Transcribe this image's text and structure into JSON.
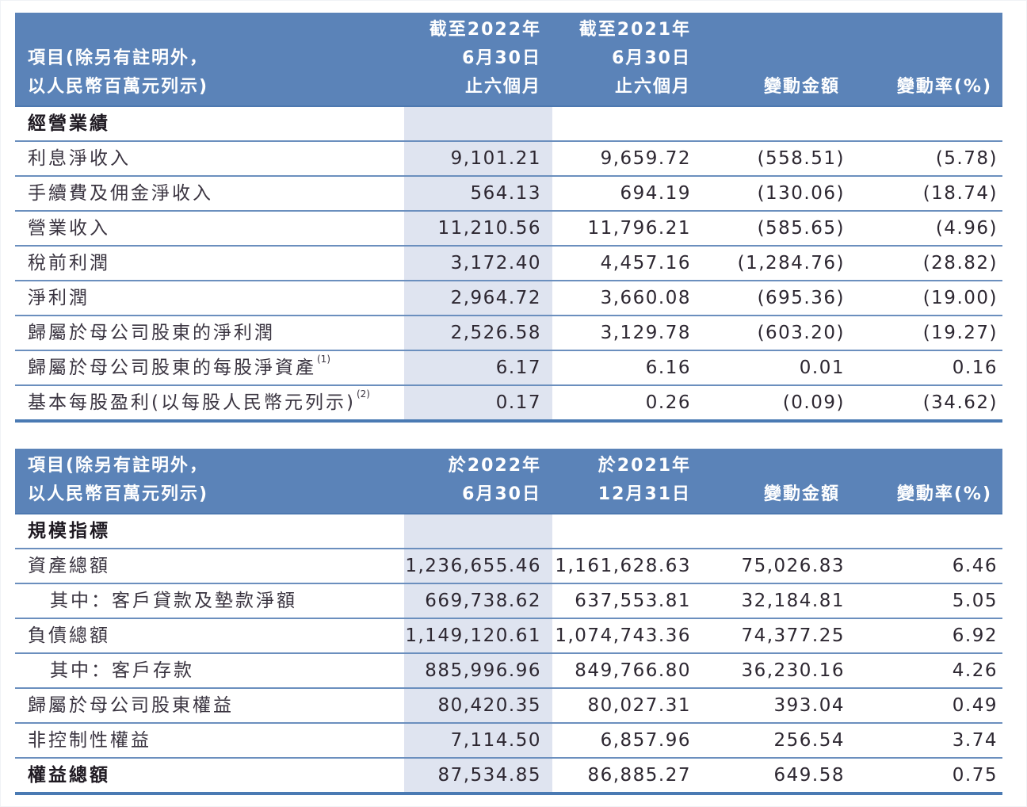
{
  "table_1": {
    "header": {
      "item_line1": "項目(除另有註明外，",
      "item_line2": "以人民幣百萬元列示)",
      "current": [
        "截至2022年",
        "6月30日",
        "止六個月"
      ],
      "previous": [
        "截至2021年",
        "6月30日",
        "止六個月"
      ],
      "change_amount": "變動金額",
      "change_rate": "變動率(%)"
    },
    "section_title": "經營業績",
    "rows": [
      {
        "item": "利息淨收入",
        "note": "",
        "current": "9,101.21",
        "previous": "9,659.72",
        "change": "(558.51)",
        "rate": "(5.78)"
      },
      {
        "item": "手續費及佣金淨收入",
        "note": "",
        "current": "564.13",
        "previous": "694.19",
        "change": "(130.06)",
        "rate": "(18.74)"
      },
      {
        "item": "營業收入",
        "note": "",
        "current": "11,210.56",
        "previous": "11,796.21",
        "change": "(585.65)",
        "rate": "(4.96)"
      },
      {
        "item": "稅前利潤",
        "note": "",
        "current": "3,172.40",
        "previous": "4,457.16",
        "change": "(1,284.76)",
        "rate": "(28.82)"
      },
      {
        "item": "淨利潤",
        "note": "",
        "current": "2,964.72",
        "previous": "3,660.08",
        "change": "(695.36)",
        "rate": "(19.00)"
      },
      {
        "item": "歸屬於母公司股東的淨利潤",
        "note": "",
        "current": "2,526.58",
        "previous": "3,129.78",
        "change": "(603.20)",
        "rate": "(19.27)"
      },
      {
        "item": "歸屬於母公司股東的每股淨資產",
        "note": "(1)",
        "current": "6.17",
        "previous": "6.16",
        "change": "0.01",
        "rate": "0.16"
      },
      {
        "item": "基本每股盈利(以每股人民幣元列示)",
        "note": "(2)",
        "current": "0.17",
        "previous": "0.26",
        "change": "(0.09)",
        "rate": "(34.62)"
      }
    ]
  },
  "table_2": {
    "header": {
      "item_line1": "項目(除另有註明外，",
      "item_line2": "以人民幣百萬元列示)",
      "current": [
        "於2022年",
        "6月30日"
      ],
      "previous": [
        "於2021年",
        "12月31日"
      ],
      "change_amount": "變動金額",
      "change_rate": "變動率(%)"
    },
    "section_title": "規模指標",
    "rows": [
      {
        "item": "資產總額",
        "current": "1,236,655.46",
        "previous": "1,161,628.63",
        "change": "75,026.83",
        "rate": "6.46"
      },
      {
        "item": "其中：客戶貸款及墊款淨額",
        "current": "669,738.62",
        "previous": "637,553.81",
        "change": "32,184.81",
        "rate": "5.05"
      },
      {
        "item": "負債總額",
        "current": "1,149,120.61",
        "previous": "1,074,743.36",
        "change": "74,377.25",
        "rate": "6.92"
      },
      {
        "item": "其中：客戶存款",
        "current": "885,996.96",
        "previous": "849,766.80",
        "change": "36,230.16",
        "rate": "4.26"
      },
      {
        "item": "歸屬於母公司股東權益",
        "current": "80,420.35",
        "previous": "80,027.31",
        "change": "393.04",
        "rate": "0.49"
      },
      {
        "item": "非控制性權益",
        "current": "7,114.50",
        "previous": "6,857.96",
        "change": "256.54",
        "rate": "3.74"
      },
      {
        "item": "權益總額",
        "current": "87,534.85",
        "previous": "86,885.27",
        "change": "649.58",
        "rate": "0.75"
      }
    ]
  },
  "colors": {
    "header_bg": "#5b83b8",
    "header_text": "#ffffff",
    "current_column_bg": "#dfe4f0",
    "row_rule": "#6b8fbe",
    "bottom_rule": "#4a7ab3"
  }
}
